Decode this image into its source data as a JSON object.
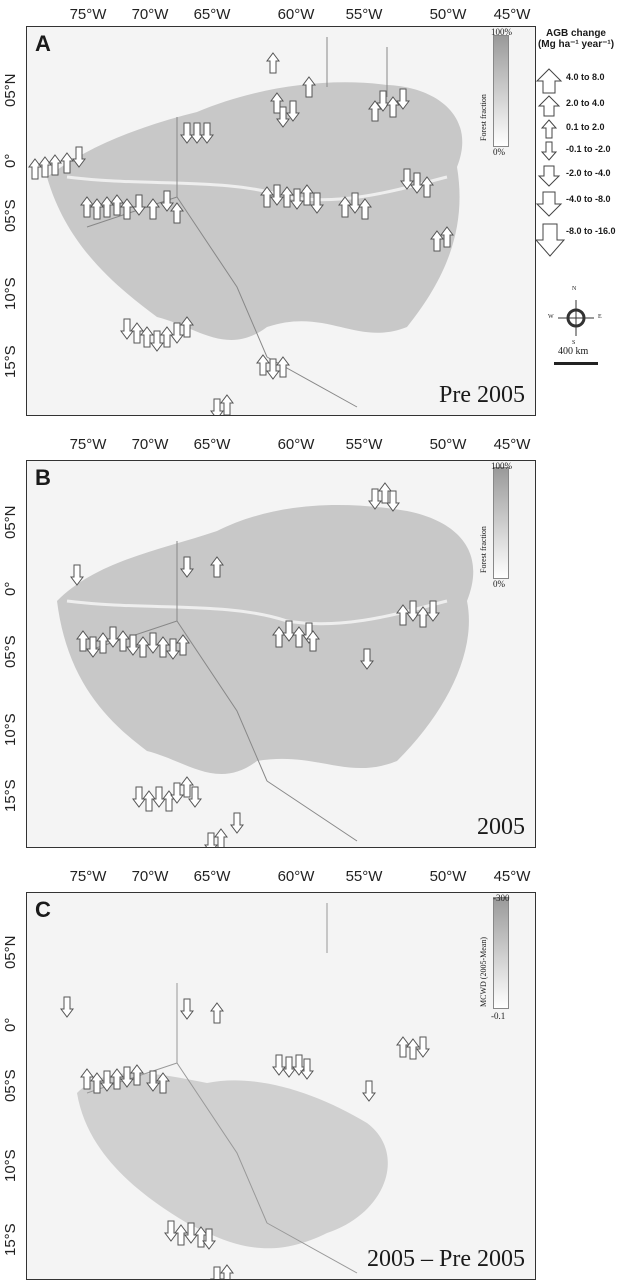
{
  "longitude_labels": [
    "75°W",
    "70°W",
    "65°W",
    "60°W",
    "55°W",
    "50°W",
    "45°W"
  ],
  "latitude_labels": [
    "05°N",
    "0°",
    "05°S",
    "10°S",
    "15°S"
  ],
  "panels": [
    {
      "letter": "A",
      "caption": "Pre 2005",
      "colorbar_top": "100%",
      "colorbar_bottom": "0%",
      "colorbar_title": "Forest fraction"
    },
    {
      "letter": "B",
      "caption": "2005",
      "colorbar_top": "100%",
      "colorbar_bottom": "0%",
      "colorbar_title": "Forest fraction"
    },
    {
      "letter": "C",
      "caption": "2005 – Pre 2005",
      "colorbar_top": "-300",
      "colorbar_bottom": "-0.1",
      "colorbar_title": "MCWD (2005-Mean)"
    }
  ],
  "legend": {
    "title_line1": "AGB change",
    "title_line2": "(Mg ha⁻¹ year⁻¹)",
    "classes": [
      "4.0 to 8.0",
      "2.0 to 4.0",
      "0.1 to 2.0",
      "-0.1 to -2.0",
      "-2.0 to -4.0",
      "-4.0 to -8.0",
      "-8.0 to -16.0"
    ]
  },
  "scale_bar": "400 km",
  "compass_letters": {
    "n": "N",
    "e": "E",
    "s": "S",
    "w": "W"
  },
  "colors": {
    "forest": "#c8c8c8",
    "nonforest": "#efefef",
    "arrow_fill": "#ffffff",
    "arrow_stroke": "#555555",
    "border": "#333333"
  }
}
